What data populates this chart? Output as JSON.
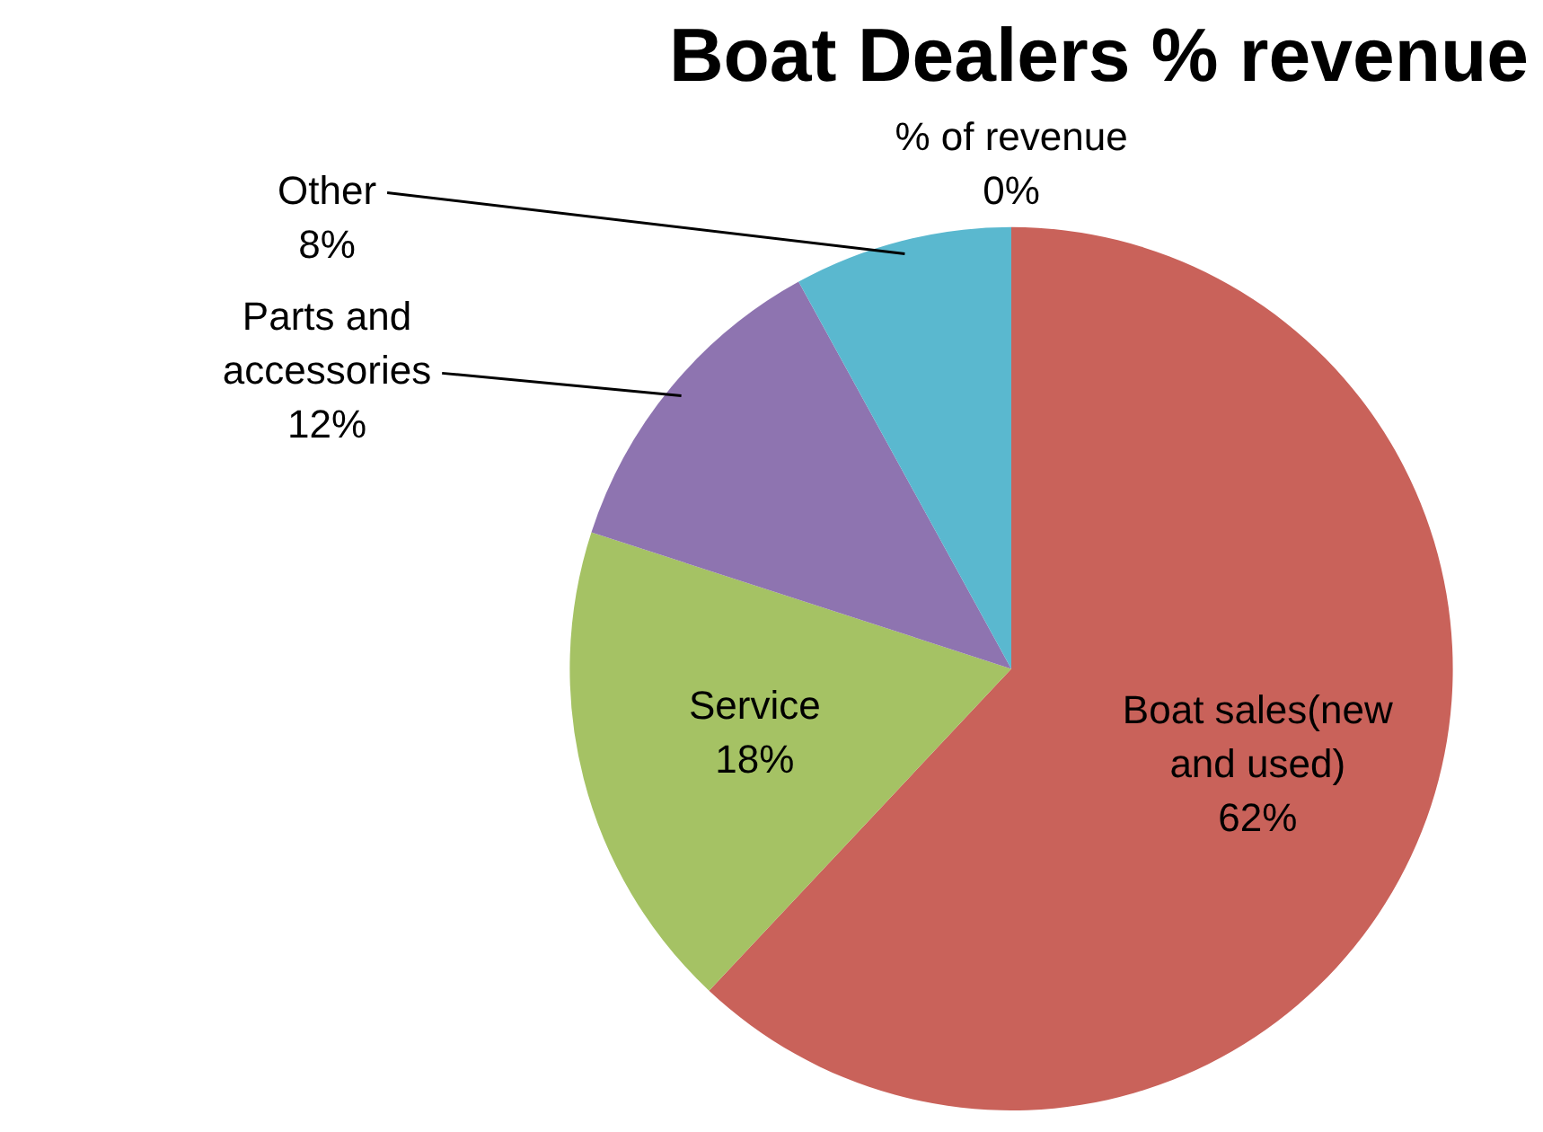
{
  "chart_data": {
    "type": "pie",
    "title": "Boat Dealers % revenue",
    "categories": [
      "% of revenue",
      "Boat sales(new and used)",
      "Service",
      "Parts and accessories",
      "Other"
    ],
    "values": [
      0,
      62,
      18,
      12,
      8
    ],
    "colors": [
      "#4f81bd",
      "#c9625a",
      "#a5c264",
      "#8e74b0",
      "#5ab8cf"
    ],
    "value_labels": [
      "0%",
      "62%",
      "18%",
      "12%",
      "8%"
    ],
    "legend": false
  }
}
